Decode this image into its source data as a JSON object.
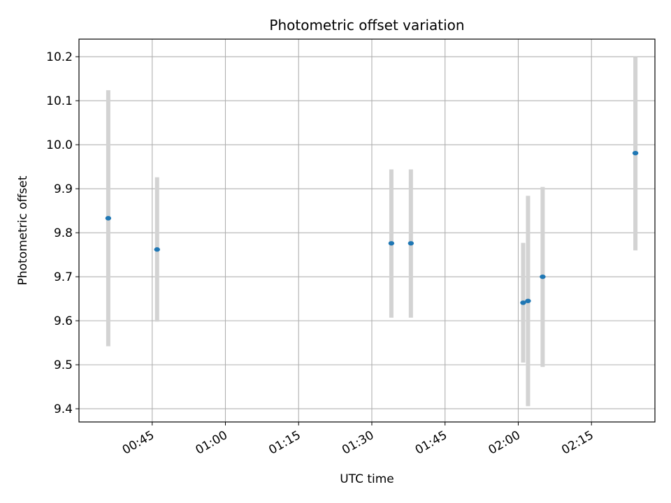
{
  "chart_data": {
    "type": "scatter",
    "title": "Photometric offset variation",
    "xlabel": "UTC time",
    "ylabel": "Photometric offset",
    "x_tick_labels": [
      "00:45",
      "01:00",
      "01:15",
      "01:30",
      "01:45",
      "02:00",
      "02:15"
    ],
    "x_ticks": [
      "00:45",
      "01:00",
      "01:15",
      "01:30",
      "01:45",
      "02:00",
      "02:15"
    ],
    "xlim": [
      "00:30",
      "02:28"
    ],
    "y_ticks": [
      9.4,
      9.5,
      9.6,
      9.7,
      9.8,
      9.9,
      10.0,
      10.1,
      10.2
    ],
    "y_tick_labels": [
      "9.4",
      "9.5",
      "9.6",
      "9.7",
      "9.8",
      "9.9",
      "10.0",
      "10.1",
      "10.2"
    ],
    "ylim": [
      9.37,
      10.24
    ],
    "grid": true,
    "point_color": "#1f77b4",
    "errorbar_color": "#d3d3d3",
    "points": [
      {
        "x": "00:36",
        "y": 9.833,
        "ylow": 9.542,
        "yhigh": 10.124
      },
      {
        "x": "00:46",
        "y": 9.762,
        "ylow": 9.598,
        "yhigh": 9.926
      },
      {
        "x": "01:34",
        "y": 9.776,
        "ylow": 9.607,
        "yhigh": 9.944
      },
      {
        "x": "01:38",
        "y": 9.776,
        "ylow": 9.607,
        "yhigh": 9.944
      },
      {
        "x": "02:01",
        "y": 9.641,
        "ylow": 9.505,
        "yhigh": 9.777
      },
      {
        "x": "02:02",
        "y": 9.645,
        "ylow": 9.406,
        "yhigh": 9.884
      },
      {
        "x": "02:05",
        "y": 9.7,
        "ylow": 9.495,
        "yhigh": 9.904
      },
      {
        "x": "02:24",
        "y": 9.981,
        "ylow": 9.76,
        "yhigh": 10.2
      }
    ]
  }
}
